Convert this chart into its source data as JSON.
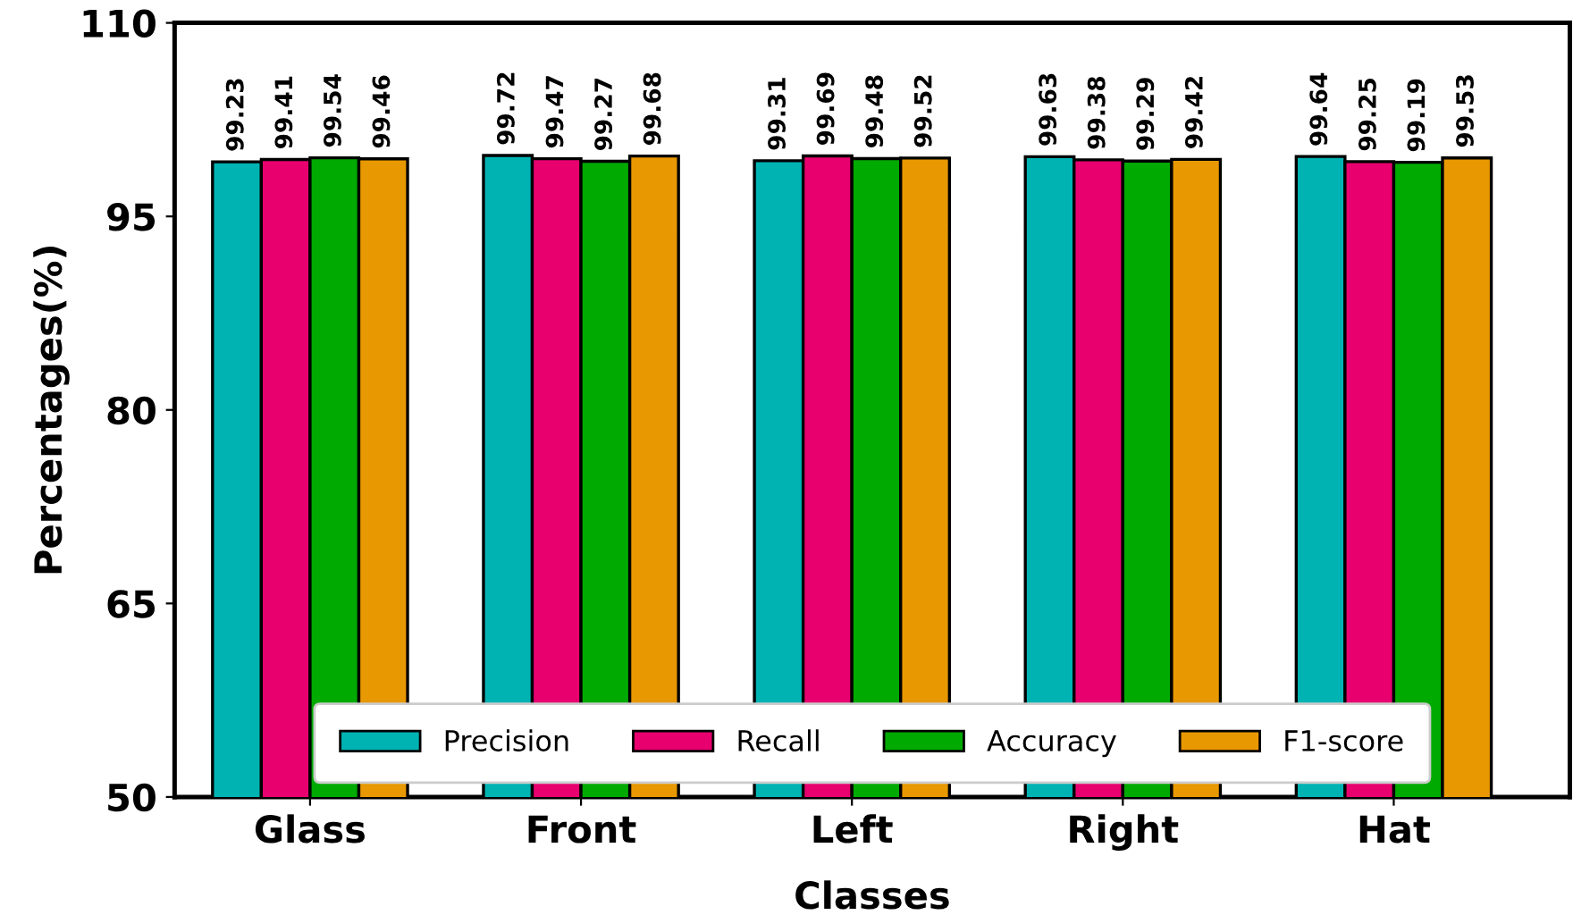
{
  "chart_data": {
    "type": "bar",
    "xlabel": "Classes",
    "ylabel": "Percentages(%)",
    "categories": [
      "Glass",
      "Front",
      "Left",
      "Right",
      "Hat"
    ],
    "series": [
      {
        "name": "Precision",
        "color": "#00b3b3",
        "values": [
          99.23,
          99.72,
          99.31,
          99.63,
          99.64
        ]
      },
      {
        "name": "Recall",
        "color": "#e8006f",
        "values": [
          99.41,
          99.47,
          99.69,
          99.38,
          99.25
        ]
      },
      {
        "name": "Accuracy",
        "color": "#00aa00",
        "values": [
          99.54,
          99.27,
          99.48,
          99.29,
          99.19
        ]
      },
      {
        "name": "F1-score",
        "color": "#e89800",
        "values": [
          99.46,
          99.68,
          99.52,
          99.42,
          99.53
        ]
      }
    ],
    "ylim": [
      50,
      110
    ],
    "yticks": [
      50,
      65,
      80,
      95,
      110
    ],
    "data_labels": true,
    "grid": false,
    "legend": "bottom"
  }
}
